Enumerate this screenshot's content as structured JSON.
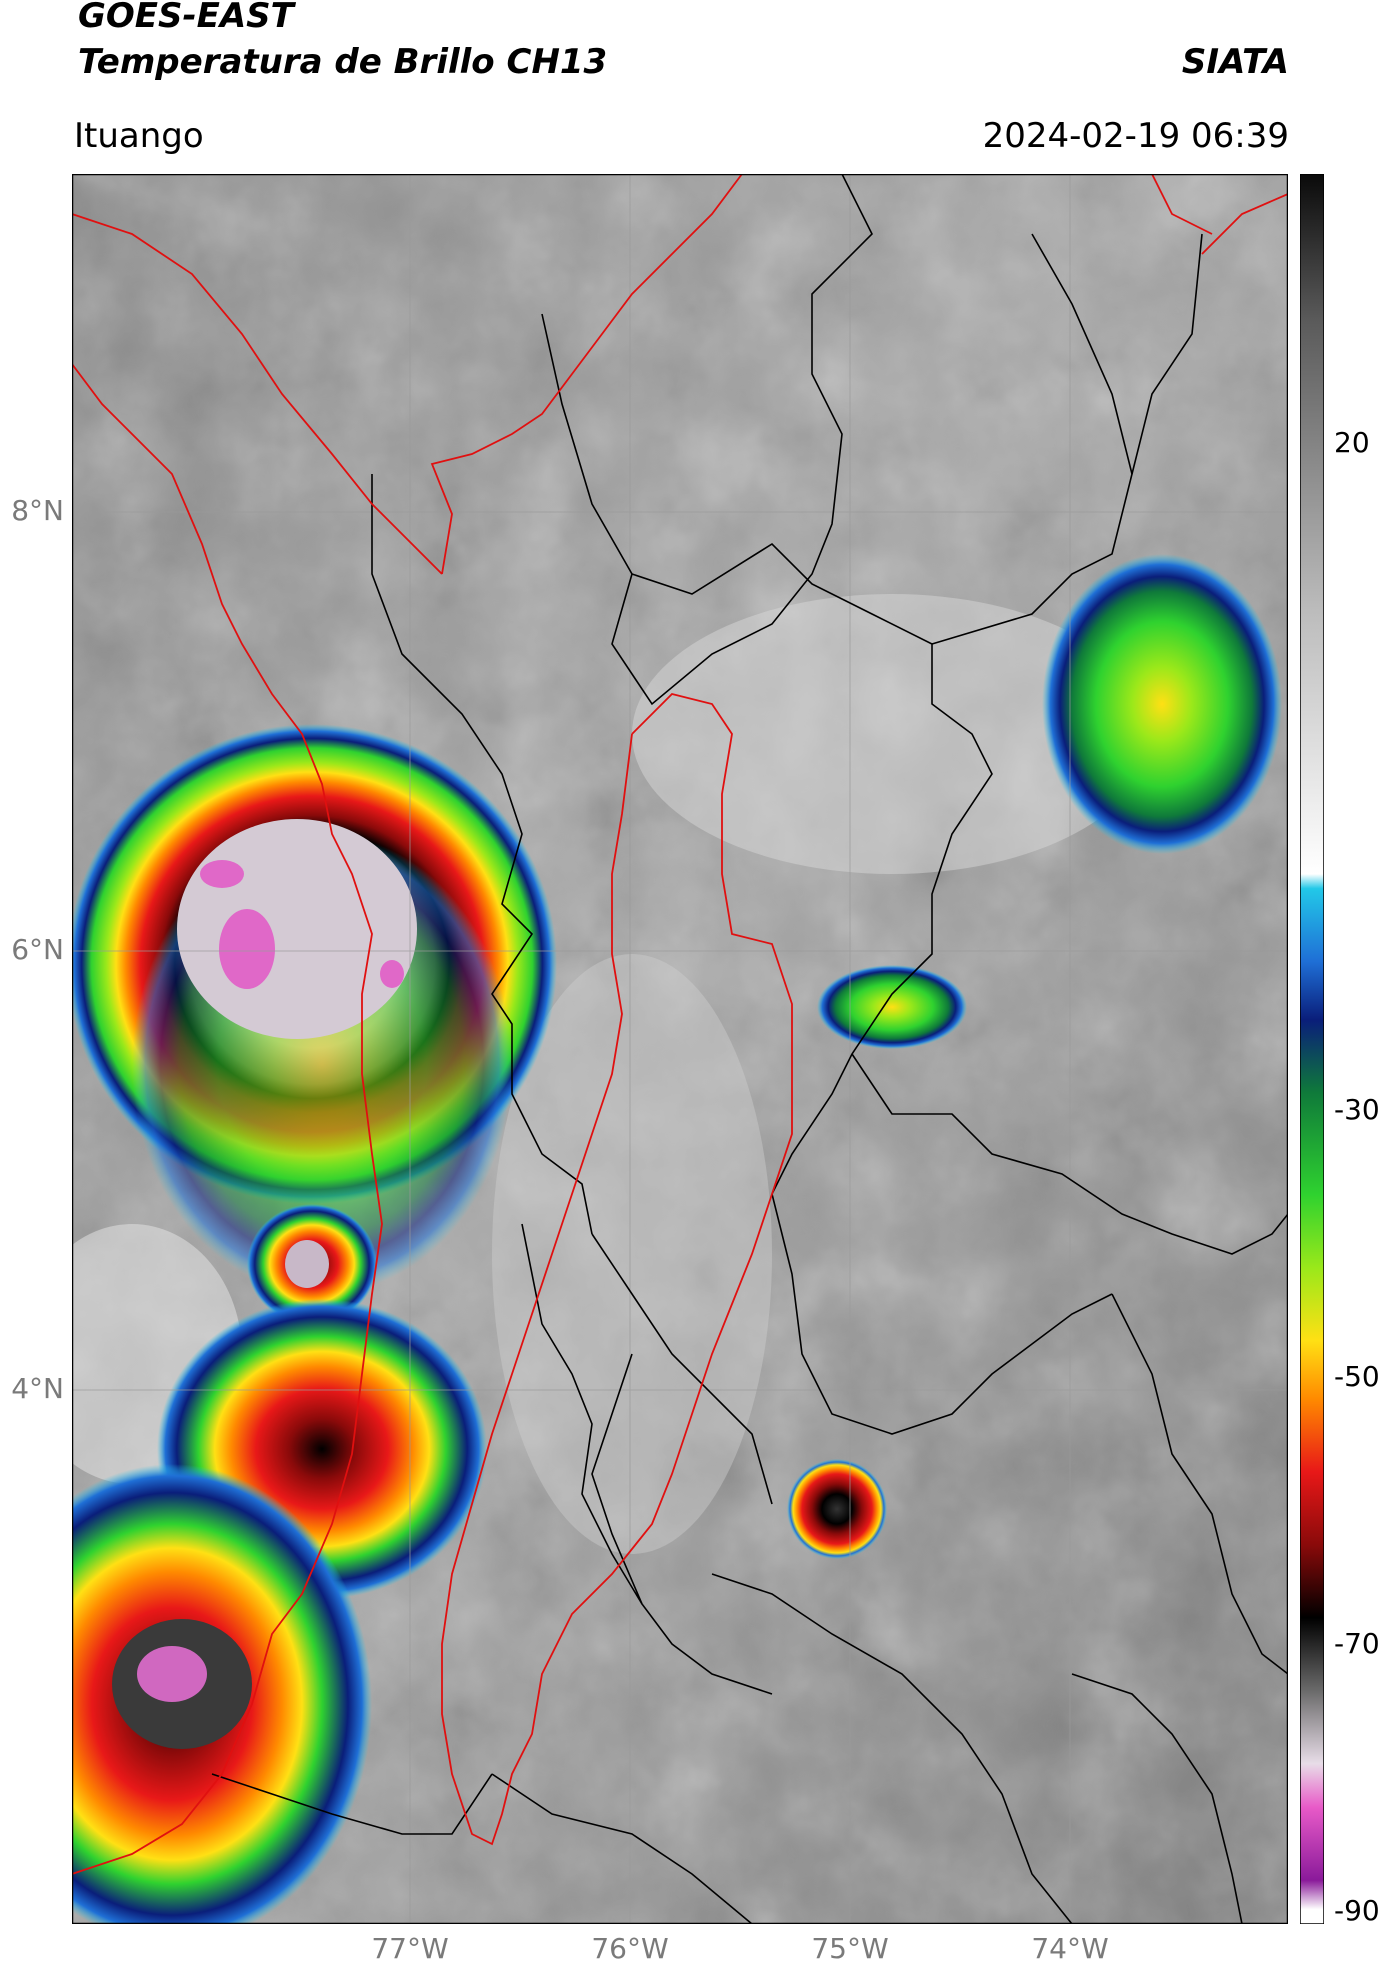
{
  "header": {
    "line1": "GOES-EAST",
    "line2": "Temperatura de Brillo CH13",
    "org": "SIATA",
    "location": "Ituango",
    "datetime": "2024-02-19 06:39"
  },
  "map": {
    "lon_ticks": [
      "77°W",
      "76°W",
      "75°W",
      "74°W"
    ],
    "lat_ticks": [
      "8°N",
      "6°N",
      "4°N"
    ],
    "extent_lon": [
      -78.55,
      -73.0
    ],
    "extent_lat": [
      2.6,
      9.55
    ]
  },
  "colorbar": {
    "ticks": [
      "20",
      "-30",
      "-50",
      "-70",
      "-90"
    ],
    "range": [
      -90,
      30
    ],
    "stops": [
      {
        "v": 30,
        "color": "#0a0a0a"
      },
      {
        "v": 20,
        "color": "#5a5a5a"
      },
      {
        "v": 0,
        "color": "#bcbcbc"
      },
      {
        "v": -18,
        "color": "#ffffff"
      },
      {
        "v": -19,
        "color": "#22c8e8"
      },
      {
        "v": -24,
        "color": "#1f6fd6"
      },
      {
        "v": -28,
        "color": "#0a1e7a"
      },
      {
        "v": -33,
        "color": "#0f7a3a"
      },
      {
        "v": -40,
        "color": "#2fd22f"
      },
      {
        "v": -45,
        "color": "#9ae81a"
      },
      {
        "v": -50,
        "color": "#ffe014"
      },
      {
        "v": -54,
        "color": "#ff8a00"
      },
      {
        "v": -59,
        "color": "#e81818"
      },
      {
        "v": -64,
        "color": "#8a0a0a"
      },
      {
        "v": -69,
        "color": "#000000"
      },
      {
        "v": -74,
        "color": "#6a6a6a"
      },
      {
        "v": -79,
        "color": "#e8dde8"
      },
      {
        "v": -82,
        "color": "#e85ac8"
      },
      {
        "v": -87,
        "color": "#8a1a9a"
      },
      {
        "v": -89,
        "color": "#ffffff"
      }
    ]
  }
}
